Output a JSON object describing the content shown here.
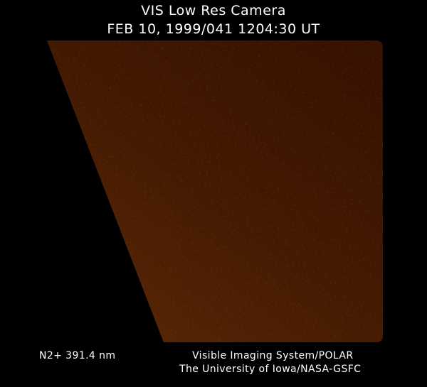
{
  "header": {
    "title": "VIS Low Res Camera",
    "timestamp": "FEB 10, 1999/041 1204:30 UT"
  },
  "image": {
    "description_colormap": [
      "#000000",
      "#7a2a02",
      "#b84a08",
      "#e07a1a"
    ]
  },
  "footer": {
    "filter": "N2+ 391.4 nm",
    "instrument": "Visible Imaging System/POLAR",
    "institution": "The University of Iowa/NASA-GSFC"
  }
}
